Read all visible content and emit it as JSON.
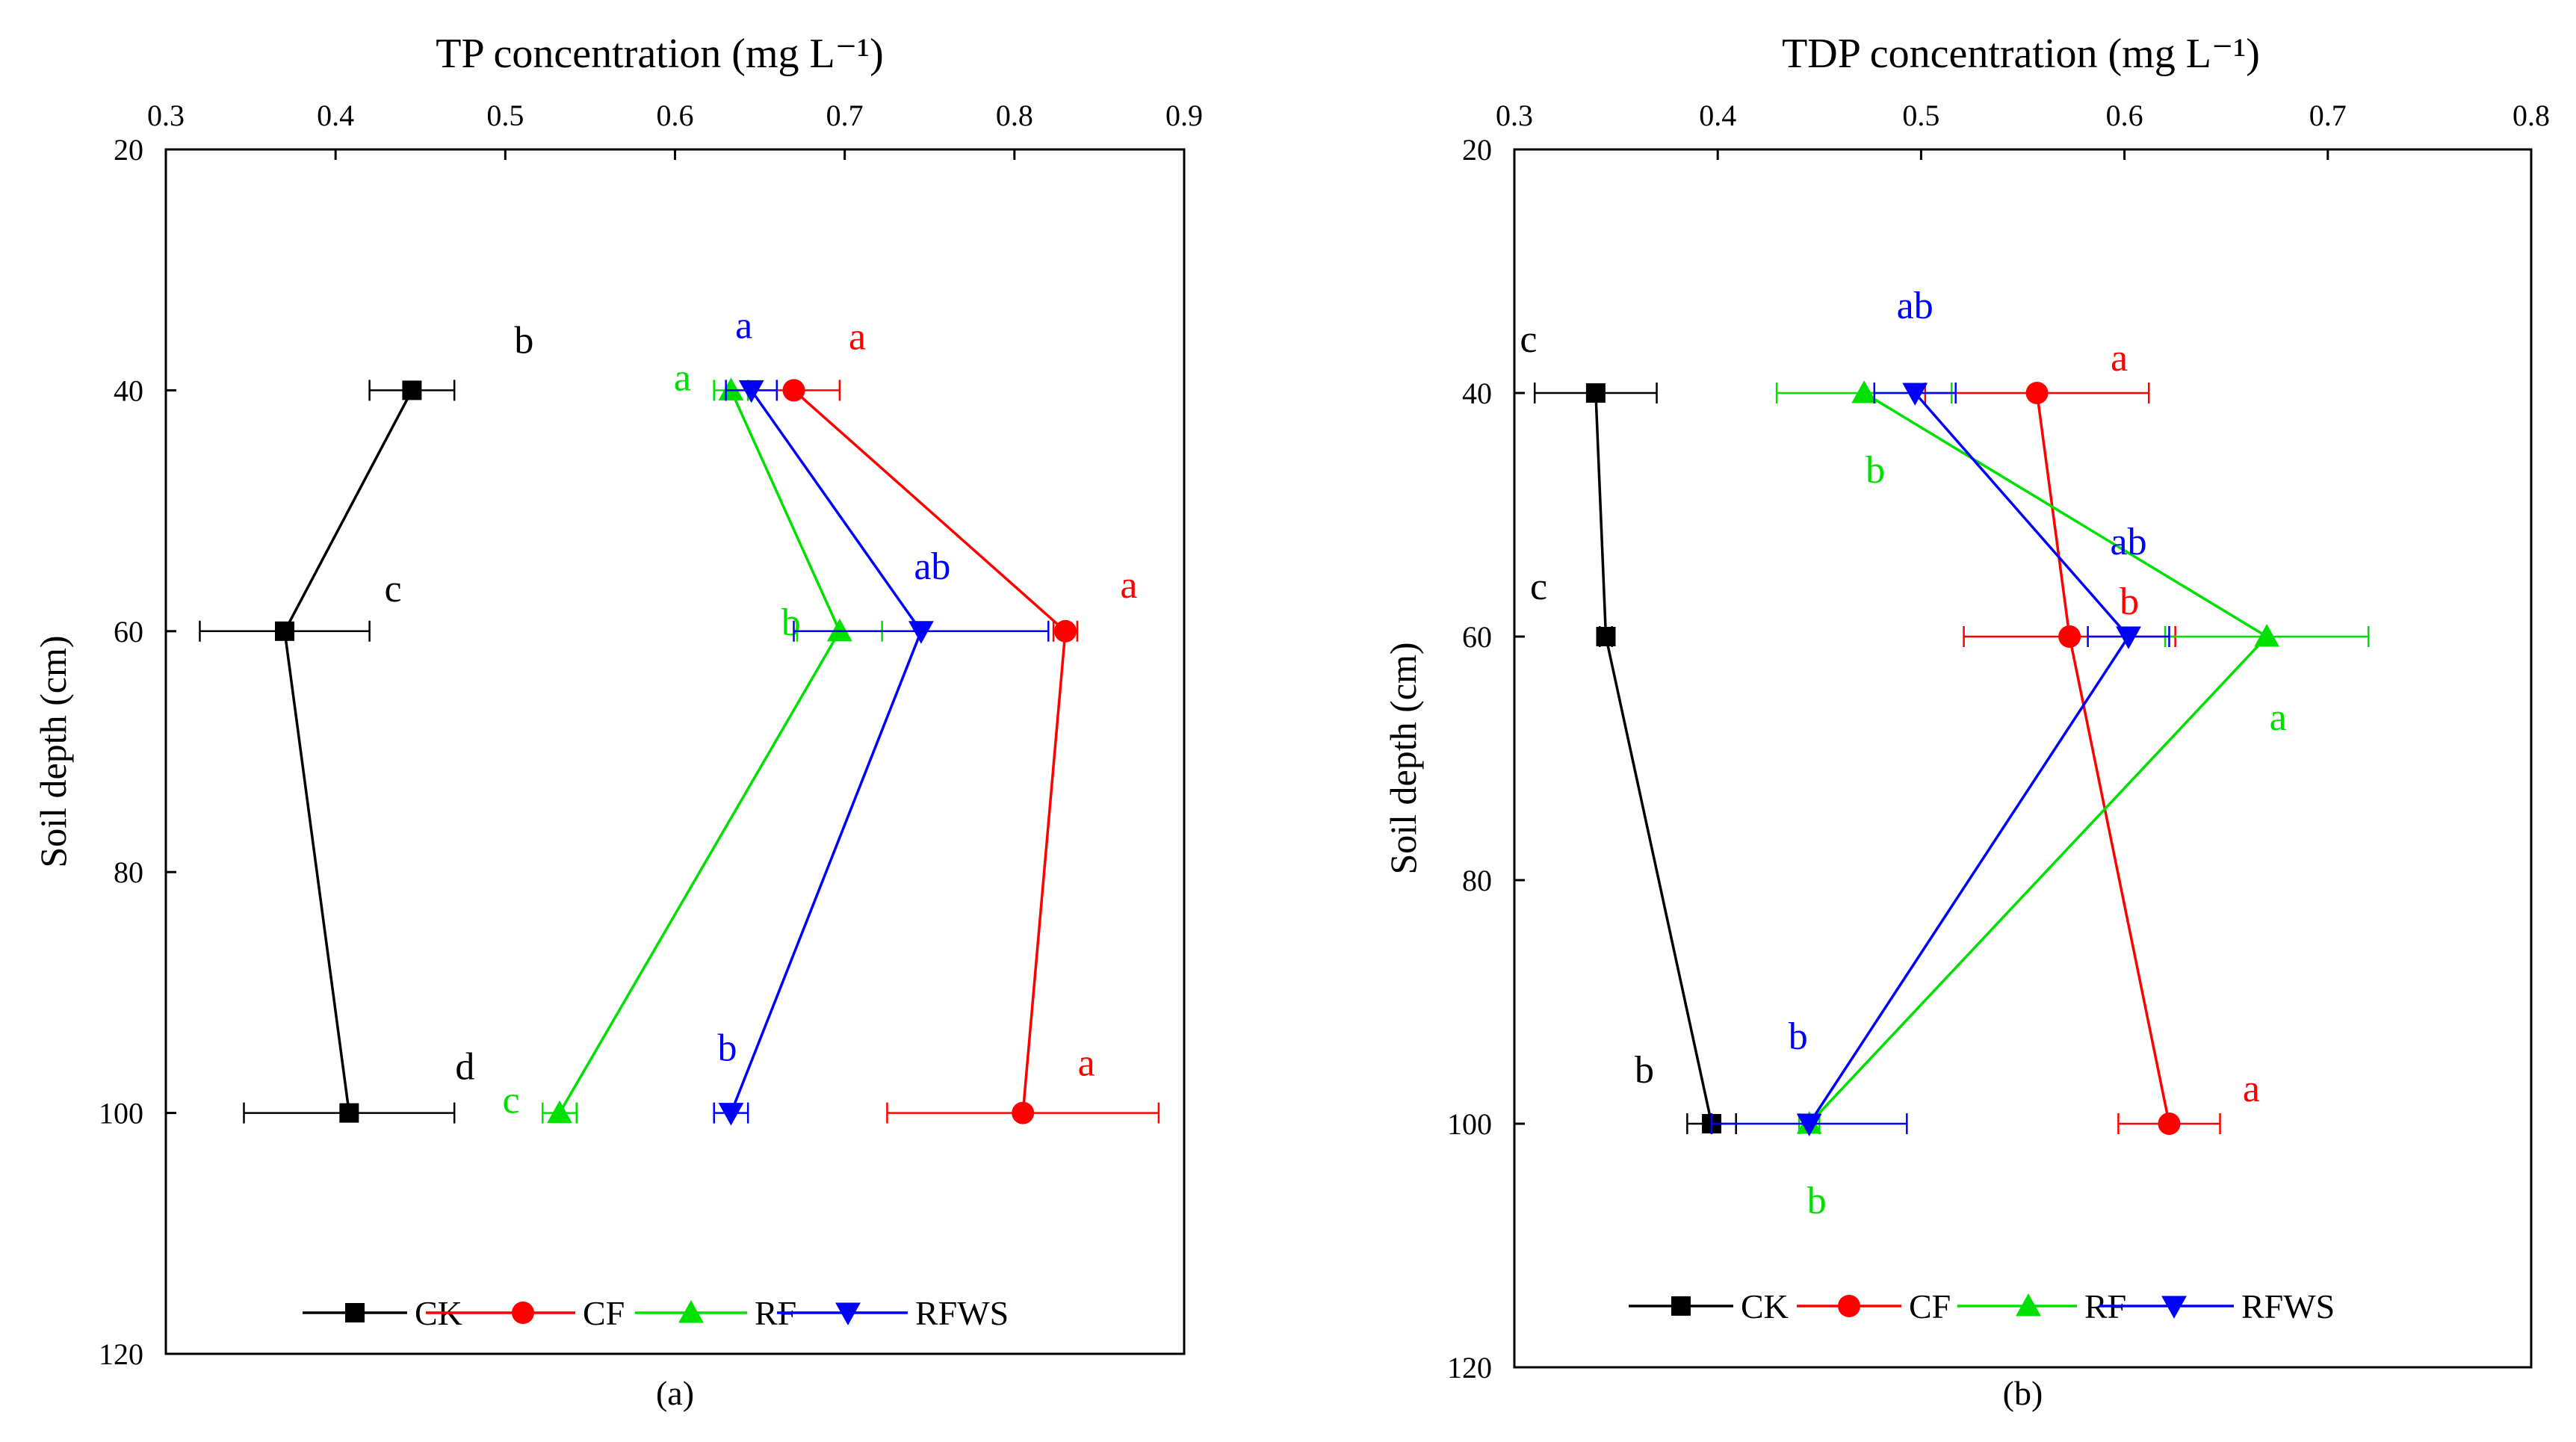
{
  "chart_data": [
    {
      "type": "line",
      "panel_label": "(a)",
      "title": "TP concentration (mg L⁻¹)",
      "xlabel": "TP concentration (mg L⁻¹)",
      "ylabel": "Soil depth (cm)",
      "xlim": [
        0.3,
        0.9
      ],
      "ylim": [
        20,
        120
      ],
      "xticks": [
        "0.3",
        "0.4",
        "0.5",
        "0.6",
        "0.7",
        "0.8",
        "0.9"
      ],
      "xtick_values": [
        0.3,
        0.4,
        0.5,
        0.6,
        0.7,
        0.8,
        0.9
      ],
      "yticks": [
        "20",
        "40",
        "60",
        "80",
        "100",
        "120"
      ],
      "ytick_values": [
        20,
        40,
        60,
        80,
        100,
        120
      ],
      "depths": [
        40,
        60,
        100
      ],
      "legend_position": "bottom-center",
      "series": [
        {
          "name": "CK",
          "color": "#000000",
          "marker": "square",
          "values": [
            0.445,
            0.37,
            0.408
          ],
          "errors": [
            0.025,
            0.05,
            0.062
          ],
          "letters": [
            "b",
            "c",
            "d"
          ]
        },
        {
          "name": "CF",
          "color": "#ff0000",
          "marker": "circle",
          "values": [
            0.67,
            0.83,
            0.805
          ],
          "errors": [
            0.027,
            0.007,
            0.08
          ],
          "letters": [
            "a",
            "a",
            "a"
          ]
        },
        {
          "name": "RF",
          "color": "#00e000",
          "marker": "triangle-up",
          "values": [
            0.633,
            0.697,
            0.532
          ],
          "errors": [
            0.01,
            0.025,
            0.01
          ],
          "letters": [
            "a",
            "b",
            "c"
          ]
        },
        {
          "name": "RFWS",
          "color": "#0000ff",
          "marker": "triangle-down",
          "values": [
            0.645,
            0.745,
            0.633
          ],
          "errors": [
            0.015,
            0.075,
            0.01
          ],
          "letters": [
            "a",
            "ab",
            "b"
          ]
        }
      ]
    },
    {
      "type": "line",
      "panel_label": "(b)",
      "title": "TDP concentration (mg L⁻¹)",
      "xlabel": "TDP concentration (mg L⁻¹)",
      "ylabel": "Soil depth (cm)",
      "xlim": [
        0.3,
        0.8
      ],
      "ylim": [
        20,
        120
      ],
      "xticks": [
        "0.3",
        "0.4",
        "0.5",
        "0.6",
        "0.7",
        "0.8"
      ],
      "xtick_values": [
        0.3,
        0.4,
        0.5,
        0.6,
        0.7,
        0.8
      ],
      "yticks": [
        "20",
        "40",
        "60",
        "80",
        "100",
        "120"
      ],
      "ytick_values": [
        20,
        40,
        60,
        80,
        100,
        120
      ],
      "depths": [
        40,
        60,
        100
      ],
      "legend_position": "bottom-center",
      "series": [
        {
          "name": "CK",
          "color": "#000000",
          "marker": "square",
          "values": [
            0.34,
            0.345,
            0.397
          ],
          "errors": [
            0.03,
            0.003,
            0.012
          ],
          "letters": [
            "c",
            "c",
            "b"
          ]
        },
        {
          "name": "CF",
          "color": "#ff0000",
          "marker": "circle",
          "values": [
            0.557,
            0.573,
            0.622
          ],
          "errors": [
            0.055,
            0.052,
            0.025
          ],
          "letters": [
            "a",
            "b",
            "a"
          ]
        },
        {
          "name": "RF",
          "color": "#00e000",
          "marker": "triangle-up",
          "values": [
            0.472,
            0.67,
            0.445
          ],
          "errors": [
            0.043,
            0.05,
            0.005
          ],
          "letters": [
            "b",
            "a",
            "b"
          ]
        },
        {
          "name": "RFWS",
          "color": "#0000ff",
          "marker": "triangle-down",
          "values": [
            0.497,
            0.602,
            0.445
          ],
          "errors": [
            0.02,
            0.02,
            0.048
          ],
          "letters": [
            "ab",
            "ab",
            "b"
          ]
        }
      ]
    }
  ]
}
